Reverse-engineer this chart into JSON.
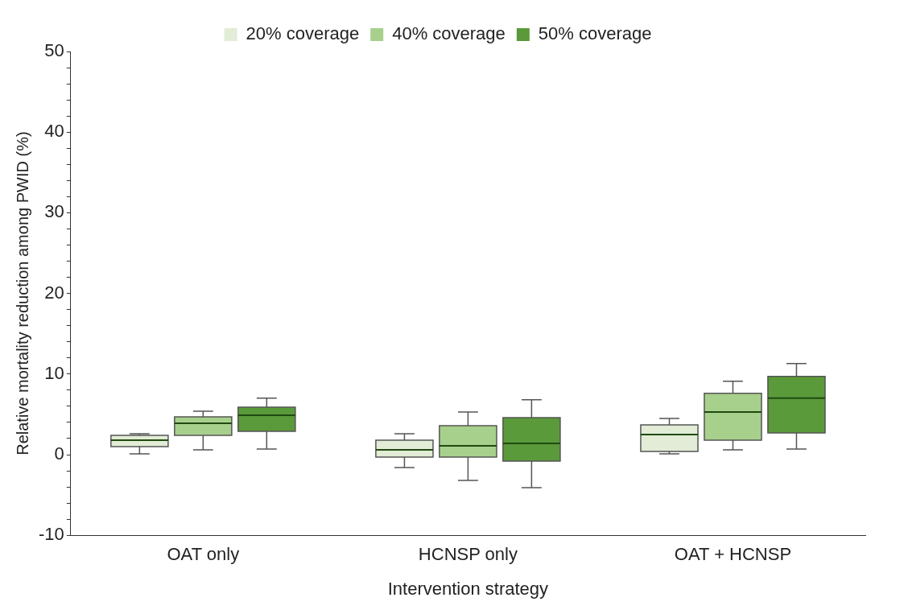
{
  "chart_data": {
    "type": "box",
    "xlabel": "Intervention strategy",
    "ylabel": "Relative mortality reduction among PWID (%)",
    "categories": [
      "OAT only",
      "HCNSP only",
      "OAT + HCNSP"
    ],
    "ylim": [
      -10,
      50
    ],
    "yticks": [
      -10,
      {
        "value": -8,
        "label": null
      },
      {
        "value": -6,
        "label": null
      },
      {
        "value": -4,
        "label": null
      },
      {
        "value": -2,
        "label": null
      },
      0,
      {
        "value": 2,
        "label": null
      },
      {
        "value": 4,
        "label": null
      },
      {
        "value": 6,
        "label": null
      },
      {
        "value": 8,
        "label": null
      },
      10,
      {
        "value": 12,
        "label": null
      },
      {
        "value": 14,
        "label": null
      },
      {
        "value": 16,
        "label": null
      },
      {
        "value": 18,
        "label": null
      },
      20,
      {
        "value": 22,
        "label": null
      },
      {
        "value": 24,
        "label": null
      },
      {
        "value": 26,
        "label": null
      },
      {
        "value": 28,
        "label": null
      },
      30,
      {
        "value": 32,
        "label": null
      },
      {
        "value": 34,
        "label": null
      },
      {
        "value": 36,
        "label": null
      },
      {
        "value": 38,
        "label": null
      },
      40,
      {
        "value": 42,
        "label": null
      },
      {
        "value": 44,
        "label": null
      },
      {
        "value": 46,
        "label": null
      },
      {
        "value": 48,
        "label": null
      },
      50
    ],
    "grid": false,
    "legend": "top",
    "series": [
      {
        "name": "20% coverage",
        "color": "#e2ecd6",
        "boxes": [
          {
            "low": 0.1,
            "q1": 1.0,
            "median": 1.8,
            "q3": 2.4,
            "high": 2.6
          },
          {
            "low": -1.6,
            "q1": -0.3,
            "median": 0.6,
            "q3": 1.8,
            "high": 2.6
          },
          {
            "low": 0.1,
            "q1": 0.4,
            "median": 2.5,
            "q3": 3.7,
            "high": 4.5
          }
        ]
      },
      {
        "name": "40% coverage",
        "color": "#a8d08d",
        "boxes": [
          {
            "low": 0.6,
            "q1": 2.4,
            "median": 3.9,
            "q3": 4.7,
            "high": 5.4
          },
          {
            "low": -3.2,
            "q1": -0.3,
            "median": 1.1,
            "q3": 3.6,
            "high": 5.3
          },
          {
            "low": 0.6,
            "q1": 1.8,
            "median": 5.3,
            "q3": 7.6,
            "high": 9.1
          }
        ]
      },
      {
        "name": "50% coverage",
        "color": "#5a9a3a",
        "boxes": [
          {
            "low": 0.7,
            "q1": 2.9,
            "median": 4.9,
            "q3": 5.9,
            "high": 7.0
          },
          {
            "low": -4.1,
            "q1": -0.8,
            "median": 1.4,
            "q3": 4.6,
            "high": 6.8
          },
          {
            "low": 0.7,
            "q1": 2.7,
            "median": 7.0,
            "q3": 9.7,
            "high": 11.3
          }
        ]
      }
    ]
  }
}
